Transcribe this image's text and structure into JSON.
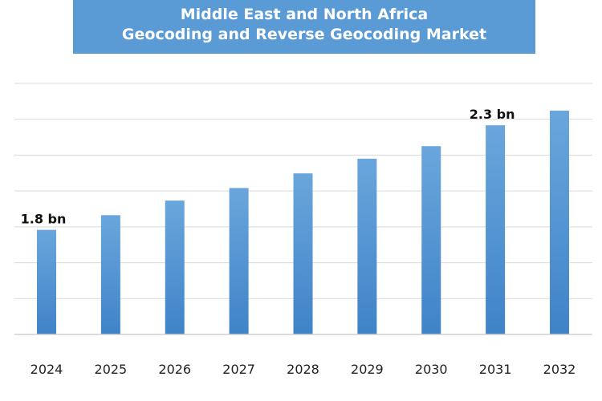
{
  "title": {
    "line1": "Middle East and North Africa",
    "line2": "Geocoding and Reverse Geocoding Market"
  },
  "colors": {
    "banner": "#5b9bd5",
    "bar_top": "#6aa6dc",
    "bar_bottom": "#3f83c8"
  },
  "chart_data": {
    "type": "bar",
    "title": "Middle East and North Africa Geocoding and Reverse Geocoding Market",
    "xlabel": "",
    "ylabel": "",
    "categories": [
      "2024",
      "2025",
      "2026",
      "2027",
      "2028",
      "2029",
      "2030",
      "2031",
      "2032"
    ],
    "values": [
      1.8,
      1.87,
      1.94,
      2.0,
      2.07,
      2.14,
      2.2,
      2.3,
      2.37
    ],
    "data_labels": [
      "1.8 bn",
      "",
      "",
      "",
      "",
      "",
      "",
      "2.3 bn",
      ""
    ],
    "ylim": [
      1.3,
      2.5
    ],
    "grid": true,
    "legend": "none"
  }
}
